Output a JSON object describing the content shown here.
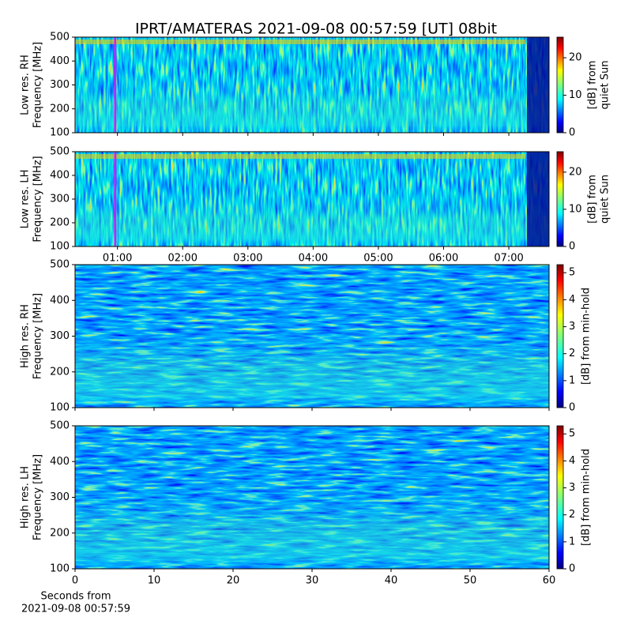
{
  "chart_data": [
    {
      "type": "heatmap",
      "title": "IPRT/AMATERAS 2021-09-08 00:57:59 [UT]   08bit",
      "ylabel": [
        "Low res. RH",
        "Frequency [MHz]"
      ],
      "ylim": [
        100,
        500
      ],
      "yticks": [
        100,
        200,
        300,
        400,
        500
      ],
      "xlim": [
        21,
        457
      ],
      "xticks": [
        {
          "value": 60,
          "label": "01:00"
        },
        {
          "value": 120,
          "label": "02:00"
        },
        {
          "value": 180,
          "label": "03:00"
        },
        {
          "value": 240,
          "label": "04:00"
        },
        {
          "value": 300,
          "label": "05:00"
        },
        {
          "value": 360,
          "label": "06:00"
        },
        {
          "value": 420,
          "label": "07:00"
        }
      ],
      "xtick_labels": false,
      "marker_x": 58,
      "marker_color": "#ff00ff",
      "colormap": "jet",
      "colorbar": {
        "label": [
          "[dB] from",
          "quiet Sun"
        ],
        "lim": [
          0,
          25.5
        ],
        "ticks": [
          0,
          10,
          20
        ]
      }
    },
    {
      "type": "heatmap",
      "ylabel": [
        "Low res. LH",
        "Frequency [MHz]"
      ],
      "ylim": [
        100,
        500
      ],
      "yticks": [
        100,
        200,
        300,
        400,
        500
      ],
      "xlim": [
        21,
        457
      ],
      "xticks": [
        {
          "value": 60,
          "label": "01:00"
        },
        {
          "value": 120,
          "label": "02:00"
        },
        {
          "value": 180,
          "label": "03:00"
        },
        {
          "value": 240,
          "label": "04:00"
        },
        {
          "value": 300,
          "label": "05:00"
        },
        {
          "value": 360,
          "label": "06:00"
        },
        {
          "value": 420,
          "label": "07:00"
        }
      ],
      "marker_x": 58,
      "marker_color": "#ff00ff",
      "colormap": "jet",
      "colorbar": {
        "label": [
          "[dB] from",
          "quiet Sun"
        ],
        "lim": [
          0,
          25.5
        ],
        "ticks": [
          0,
          10,
          20
        ]
      }
    },
    {
      "type": "heatmap",
      "ylabel": [
        "High res. RH",
        "Frequency [MHz]"
      ],
      "ylim": [
        100,
        500
      ],
      "yticks": [
        100,
        200,
        300,
        400,
        500
      ],
      "xlim": [
        0,
        60
      ],
      "xticks": [
        0,
        10,
        20,
        30,
        40,
        50,
        60
      ],
      "xtick_labels": false,
      "colormap": "jet",
      "colorbar": {
        "label": [
          "[dB] from min-hold"
        ],
        "lim": [
          0,
          5.3
        ],
        "ticks": [
          0,
          1,
          2,
          3,
          4,
          5
        ]
      }
    },
    {
      "type": "heatmap",
      "ylabel": [
        "High res. LH",
        "Frequency [MHz]"
      ],
      "ylim": [
        100,
        500
      ],
      "yticks": [
        100,
        200,
        300,
        400,
        500
      ],
      "xlim": [
        0,
        60
      ],
      "xticks": [
        0,
        10,
        20,
        30,
        40,
        50,
        60
      ],
      "colormap": "jet",
      "xlabel": [
        "Seconds from",
        "2021-09-08 00:57:59"
      ],
      "colorbar": {
        "label": [
          "[dB] from min-hold"
        ],
        "lim": [
          0,
          5.3
        ],
        "ticks": [
          0,
          1,
          2,
          3,
          4,
          5
        ]
      }
    }
  ]
}
